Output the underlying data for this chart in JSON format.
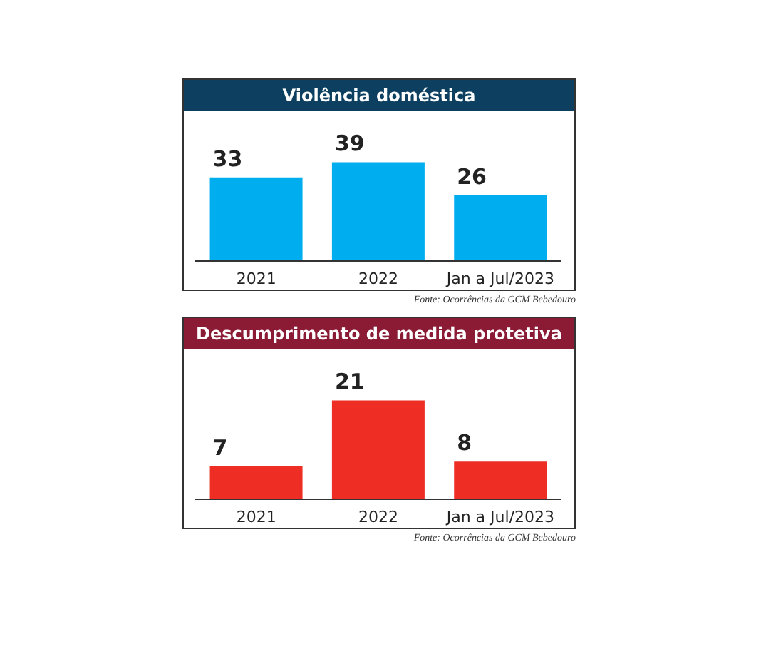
{
  "chart_data": [
    {
      "type": "bar",
      "title": "Violência doméstica",
      "categories": [
        "2021",
        "2022",
        "Jan a Jul/2023"
      ],
      "values": [
        33,
        39,
        26
      ],
      "color": "#00aeef",
      "data_labels": true,
      "annotations": [
        "Fonte: Ocorrências da GCM Bebedouro"
      ]
    },
    {
      "type": "bar",
      "title": "Descumprimento de medida protetiva",
      "categories": [
        "2021",
        "2022",
        "Jan a Jul/2023"
      ],
      "values": [
        7,
        21,
        8
      ],
      "color": "#ee2e24",
      "data_labels": true,
      "annotations": [
        "Fonte: Ocorrências da GCM Bebedouro"
      ]
    }
  ]
}
